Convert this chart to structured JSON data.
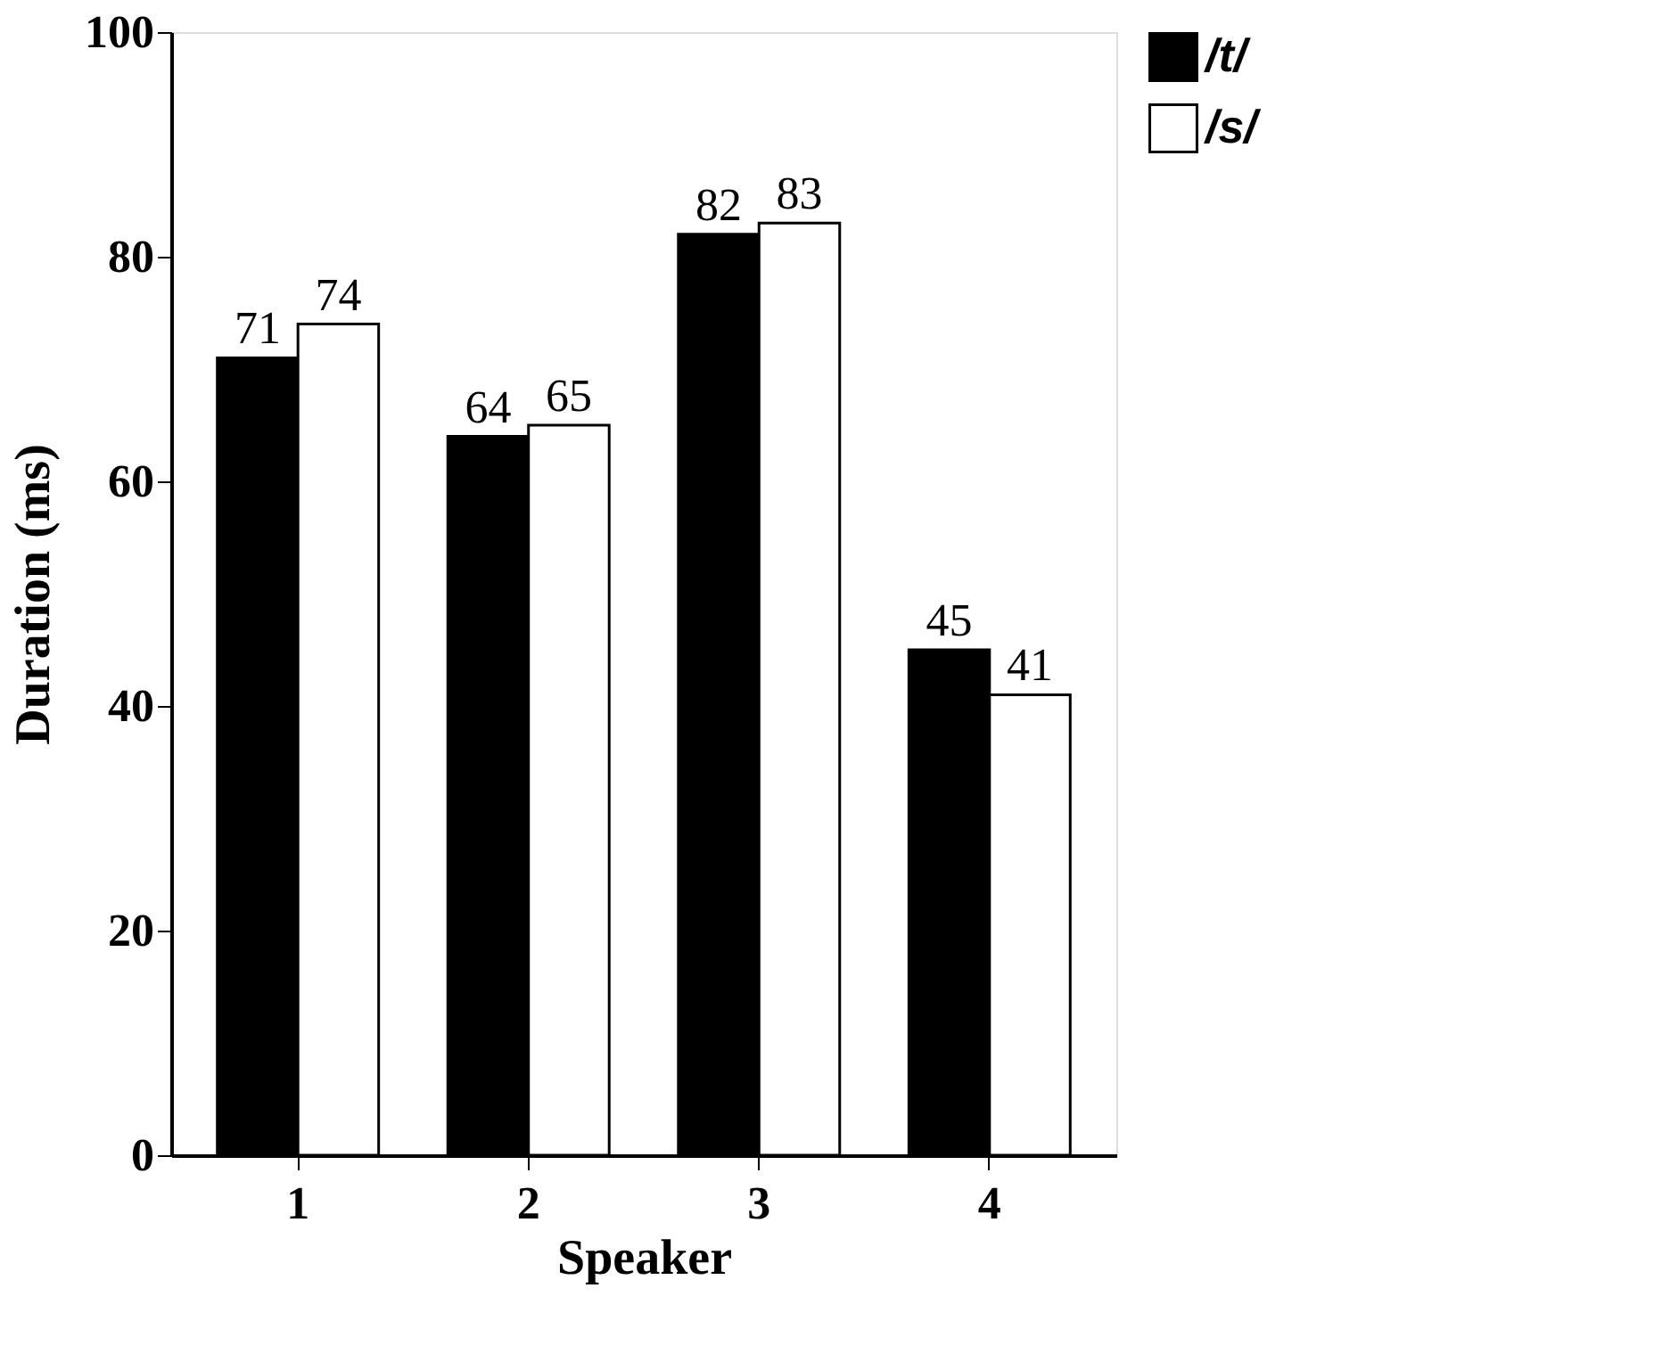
{
  "chart_data": {
    "type": "bar",
    "xlabel": "Speaker",
    "ylabel": "Duration (ms)",
    "categories": [
      "1",
      "2",
      "3",
      "4"
    ],
    "series": [
      {
        "name": "/t/",
        "color": "#000000",
        "values": [
          71,
          64,
          82,
          45
        ]
      },
      {
        "name": "/s/",
        "color": "#ffffff",
        "values": [
          74,
          65,
          83,
          41
        ]
      }
    ],
    "ylim": [
      0,
      100
    ],
    "yticks": [
      0,
      20,
      40,
      60,
      80,
      100
    ],
    "data_labels": true,
    "grid": false,
    "legend": "top right"
  }
}
